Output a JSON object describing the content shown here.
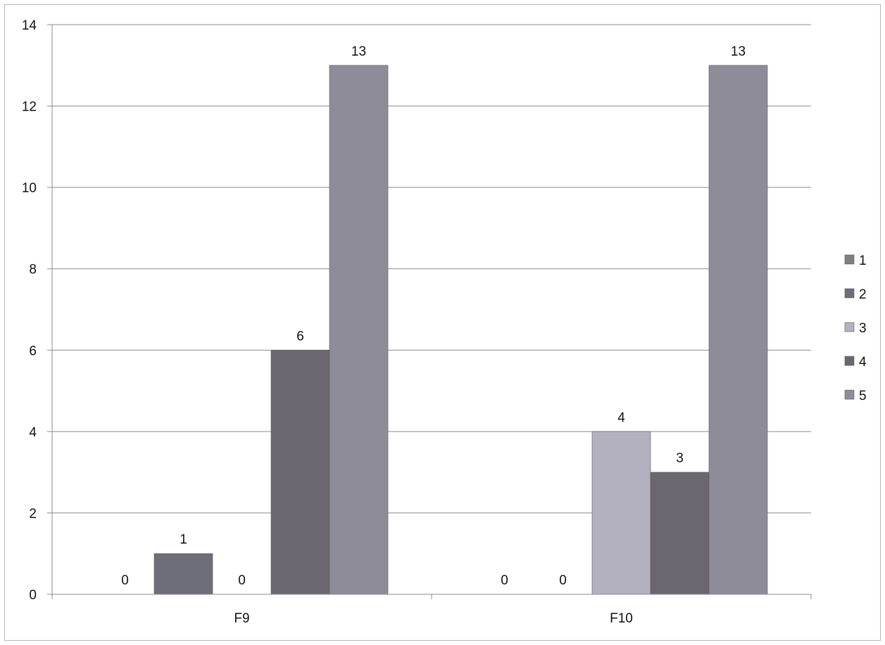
{
  "chart_data": {
    "type": "bar",
    "categories": [
      "F9",
      "F10"
    ],
    "series": [
      {
        "name": "1",
        "values": [
          0,
          0
        ],
        "color": "#7f7f7f"
      },
      {
        "name": "2",
        "values": [
          1,
          0
        ],
        "color": "#6e6e78"
      },
      {
        "name": "3",
        "values": [
          0,
          4
        ],
        "color": "#b3b1bf"
      },
      {
        "name": "4",
        "values": [
          6,
          3
        ],
        "color": "#6b6770"
      },
      {
        "name": "5",
        "values": [
          13,
          13
        ],
        "color": "#8f8c99"
      }
    ],
    "title": "",
    "xlabel": "",
    "ylabel": "",
    "ylim": [
      0,
      14
    ],
    "yticks": [
      0,
      2,
      4,
      6,
      8,
      10,
      12,
      14
    ],
    "grid": true,
    "data_labels": true,
    "legend": "right"
  }
}
